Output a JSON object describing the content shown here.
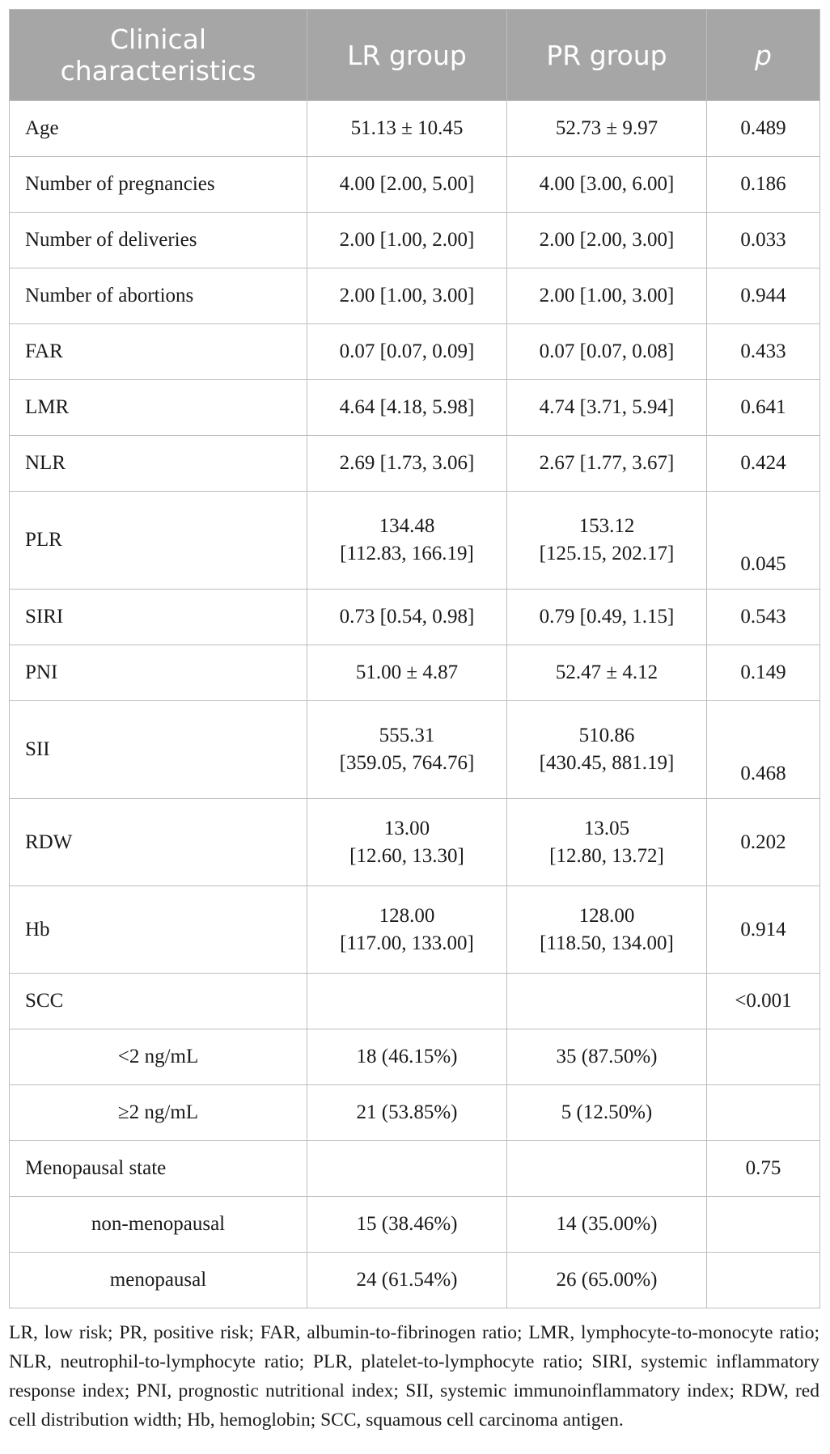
{
  "headers": {
    "characteristics": "Clinical\ncharacteristics",
    "lr": "LR group",
    "pr": "PR group",
    "p": "p"
  },
  "rows": [
    {
      "name": "Age",
      "lr": "51.13 ± 10.45",
      "pr": "52.73 ± 9.97",
      "p": "0.489"
    },
    {
      "name": "Number of pregnancies",
      "lr": "4.00 [2.00, 5.00]",
      "pr": "4.00 [3.00, 6.00]",
      "p": "0.186"
    },
    {
      "name": "Number of deliveries",
      "lr": "2.00 [1.00, 2.00]",
      "pr": "2.00 [2.00, 3.00]",
      "p": "0.033"
    },
    {
      "name": "Number of abortions",
      "lr": "2.00 [1.00, 3.00]",
      "pr": "2.00 [1.00, 3.00]",
      "p": "0.944"
    },
    {
      "name": "FAR",
      "lr": "0.07 [0.07, 0.09]",
      "pr": "0.07 [0.07, 0.08]",
      "p": "0.433"
    },
    {
      "name": "LMR",
      "lr": "4.64 [4.18, 5.98]",
      "pr": "4.74 [3.71, 5.94]",
      "p": "0.641"
    },
    {
      "name": "NLR",
      "lr": "2.69 [1.73, 3.06]",
      "pr": "2.67 [1.77, 3.67]",
      "p": "0.424"
    },
    {
      "name": "PLR",
      "lr": "134.48\n[112.83, 166.19]",
      "pr": "153.12\n[125.15, 202.17]",
      "p": "0.045"
    },
    {
      "name": "SIRI",
      "lr": "0.73 [0.54, 0.98]",
      "pr": "0.79 [0.49, 1.15]",
      "p": "0.543"
    },
    {
      "name": "PNI",
      "lr": "51.00 ± 4.87",
      "pr": "52.47 ± 4.12",
      "p": "0.149"
    },
    {
      "name": "SII",
      "lr": "555.31\n[359.05, 764.76]",
      "pr": "510.86\n[430.45, 881.19]",
      "p": "0.468"
    },
    {
      "name": "RDW",
      "lr": "13.00\n[12.60, 13.30]",
      "pr": "13.05\n[12.80, 13.72]",
      "p": "0.202"
    },
    {
      "name": "Hb",
      "lr": "128.00\n[117.00, 133.00]",
      "pr": "128.00\n[118.50, 134.00]",
      "p": "0.914"
    },
    {
      "name": "SCC",
      "lr": "",
      "pr": "",
      "p": "<0.001"
    },
    {
      "name": "<2 ng/mL",
      "lr": "18 (46.15%)",
      "pr": "35 (87.50%)",
      "p": ""
    },
    {
      "name": "≥2 ng/mL",
      "lr": "21 (53.85%)",
      "pr": "5 (12.50%)",
      "p": ""
    },
    {
      "name": "Menopausal state",
      "lr": "",
      "pr": "",
      "p": "0.75"
    },
    {
      "name": "non-menopausal",
      "lr": "15 (38.46%)",
      "pr": "14 (35.00%)",
      "p": ""
    },
    {
      "name": "menopausal",
      "lr": "24 (61.54%)",
      "pr": "26 (65.00%)",
      "p": ""
    }
  ],
  "footnote": "LR, low risk; PR, positive risk; FAR, albumin-to-fibrinogen ratio; LMR, lymphocyte-to-monocyte ratio; NLR, neutrophil-to-lymphocyte ratio; PLR, platelet-to-lymphocyte ratio; SIRI, systemic inflammatory response index; PNI, prognostic nutritional index; SII, systemic immunoinflammatory index; RDW, red cell distribution width; Hb, hemoglobin; SCC, squamous cell carcinoma antigen."
}
